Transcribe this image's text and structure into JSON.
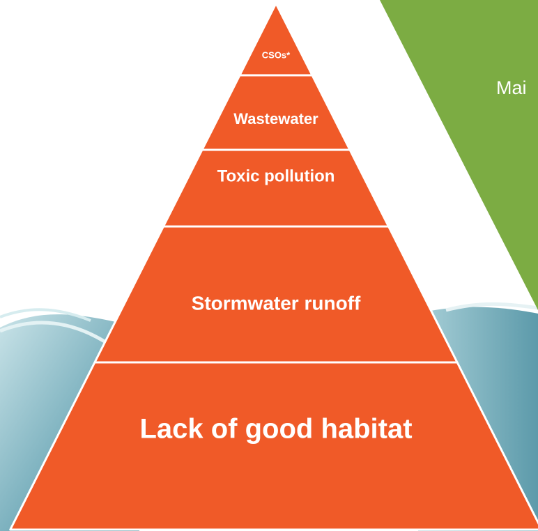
{
  "pyramid": {
    "levels": [
      "CSOs*",
      "Wastewater",
      "Toxic pollution",
      "Stormwater runoff",
      "Lack of good habitat"
    ]
  },
  "side_panel": {
    "text": "Mai"
  }
}
